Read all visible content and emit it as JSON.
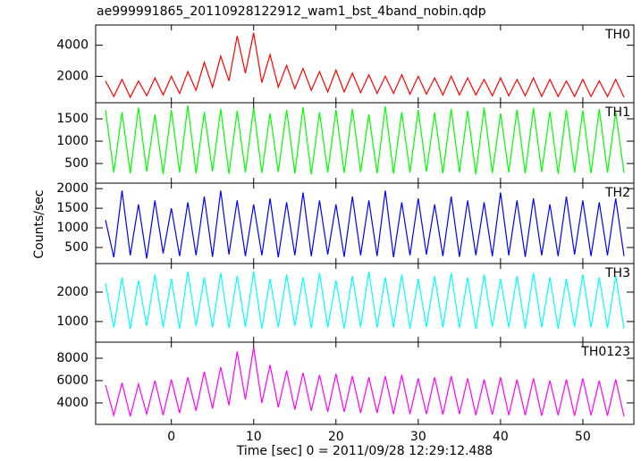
{
  "title": "ae999991865_20110928122912_wam1_bst_4band_nobin.qdp",
  "y_label": "Counts/sec",
  "x_label": "Time [sec] 0 = 2011/09/28 12:29:12.488",
  "chart_data": [
    {
      "type": "line",
      "name": "TH0",
      "color": "#ff0000",
      "x": [
        -8,
        -7,
        -6,
        -5,
        -4,
        -3,
        -2,
        -1,
        0,
        1,
        2,
        3,
        4,
        5,
        6,
        7,
        8,
        9,
        10,
        11,
        12,
        13,
        14,
        15,
        16,
        17,
        18,
        19,
        20,
        21,
        22,
        23,
        24,
        25,
        26,
        27,
        28,
        29,
        30,
        31,
        32,
        33,
        34,
        35,
        36,
        37,
        38,
        39,
        40,
        41,
        42,
        43,
        44,
        45,
        46,
        47,
        48,
        49,
        50,
        51,
        52,
        53,
        54,
        55
      ],
      "values": [
        1700,
        700,
        1800,
        650,
        1700,
        750,
        1900,
        800,
        2000,
        900,
        2300,
        1100,
        2900,
        1300,
        3300,
        1700,
        4600,
        2200,
        4800,
        1600,
        3400,
        1300,
        2700,
        1200,
        2500,
        1100,
        2300,
        1000,
        2400,
        1000,
        2200,
        950,
        2100,
        900,
        2000,
        900,
        2100,
        850,
        2000,
        850,
        1900,
        800,
        2000,
        800,
        1900,
        800,
        1800,
        750,
        1900,
        750,
        1800,
        750,
        1900,
        700,
        1800,
        700,
        1700,
        700,
        1800,
        700,
        1700,
        700,
        1800,
        650
      ],
      "xlim": [
        -9.2,
        56.2
      ],
      "ylim": [
        300,
        5300
      ],
      "yticks": [
        2000,
        4000
      ],
      "xticks": [
        0,
        10,
        20,
        30,
        40,
        50
      ]
    },
    {
      "type": "line",
      "name": "TH1",
      "color": "#00ff00",
      "x": [
        -8,
        -7,
        -6,
        -5,
        -4,
        -3,
        -2,
        -1,
        0,
        1,
        2,
        3,
        4,
        5,
        6,
        7,
        8,
        9,
        10,
        11,
        12,
        13,
        14,
        15,
        16,
        17,
        18,
        19,
        20,
        21,
        22,
        23,
        24,
        25,
        26,
        27,
        28,
        29,
        30,
        31,
        32,
        33,
        34,
        35,
        36,
        37,
        38,
        39,
        40,
        41,
        42,
        43,
        44,
        45,
        46,
        47,
        48,
        49,
        50,
        51,
        52,
        53,
        54,
        55
      ],
      "values": [
        1700,
        300,
        1650,
        280,
        1750,
        320,
        1600,
        260,
        1700,
        300,
        1800,
        280,
        1650,
        320,
        1720,
        270,
        1680,
        300,
        1750,
        290,
        1620,
        310,
        1700,
        280,
        1760,
        260,
        1650,
        300,
        1700,
        290,
        1720,
        310,
        1600,
        280,
        1780,
        270,
        1650,
        300,
        1700,
        320,
        1640,
        280,
        1720,
        300,
        1680,
        260,
        1750,
        290,
        1620,
        300,
        1700,
        280,
        1740,
        310,
        1660,
        270,
        1700,
        300,
        1690,
        280,
        1720,
        300,
        1650,
        290
      ],
      "xlim": [
        -9.2,
        56.2
      ],
      "ylim": [
        60,
        1860
      ],
      "yticks": [
        500,
        1000,
        1500
      ],
      "xticks": [
        0,
        10,
        20,
        30,
        40,
        50
      ]
    },
    {
      "type": "line",
      "name": "TH2",
      "color": "#0000ff",
      "x": [
        -8,
        -7,
        -6,
        -5,
        -4,
        -3,
        -2,
        -1,
        0,
        1,
        2,
        3,
        4,
        5,
        6,
        7,
        8,
        9,
        10,
        11,
        12,
        13,
        14,
        15,
        16,
        17,
        18,
        19,
        20,
        21,
        22,
        23,
        24,
        25,
        26,
        27,
        28,
        29,
        30,
        31,
        32,
        33,
        34,
        35,
        36,
        37,
        38,
        39,
        40,
        41,
        42,
        43,
        44,
        45,
        46,
        47,
        48,
        49,
        50,
        51,
        52,
        53,
        54,
        55
      ],
      "values": [
        1200,
        250,
        1950,
        300,
        1600,
        220,
        1700,
        350,
        1500,
        280,
        1650,
        300,
        1800,
        260,
        1950,
        320,
        1700,
        280,
        1600,
        300,
        1750,
        250,
        1650,
        300,
        1900,
        280,
        1700,
        320,
        1600,
        260,
        1800,
        300,
        1700,
        280,
        1950,
        250,
        1650,
        300,
        1750,
        320,
        1600,
        280,
        1800,
        260,
        1700,
        300,
        1650,
        280,
        1900,
        300,
        1700,
        260,
        1750,
        300,
        1600,
        280,
        1800,
        320,
        1700,
        280,
        1650,
        300,
        1750,
        280
      ],
      "xlim": [
        -9.2,
        56.2
      ],
      "ylim": [
        90,
        2140
      ],
      "yticks": [
        500,
        1000,
        1500,
        2000
      ],
      "xticks": [
        0,
        10,
        20,
        30,
        40,
        50
      ]
    },
    {
      "type": "line",
      "name": "TH3",
      "color": "#00ffff",
      "x": [
        -8,
        -7,
        -6,
        -5,
        -4,
        -3,
        -2,
        -1,
        0,
        1,
        2,
        3,
        4,
        5,
        6,
        7,
        8,
        9,
        10,
        11,
        12,
        13,
        14,
        15,
        16,
        17,
        18,
        19,
        20,
        21,
        22,
        23,
        24,
        25,
        26,
        27,
        28,
        29,
        30,
        31,
        32,
        33,
        34,
        35,
        36,
        37,
        38,
        39,
        40,
        41,
        42,
        43,
        44,
        45,
        46,
        47,
        48,
        49,
        50,
        51,
        52,
        53,
        54,
        55
      ],
      "values": [
        2300,
        800,
        2500,
        750,
        2400,
        850,
        2600,
        800,
        2450,
        750,
        2700,
        850,
        2500,
        800,
        2650,
        780,
        2550,
        820,
        2700,
        760,
        2450,
        800,
        2600,
        850,
        2500,
        780,
        2650,
        800,
        2400,
        760,
        2550,
        820,
        2700,
        790,
        2500,
        800,
        2600,
        760,
        2450,
        820,
        2550,
        800,
        2650,
        780,
        2500,
        750,
        2600,
        820,
        2450,
        800,
        2550,
        770,
        2650,
        800,
        2500,
        760,
        2450,
        820,
        2600,
        800,
        2500,
        780,
        2550,
        760
      ],
      "xlim": [
        -9.2,
        56.2
      ],
      "ylim": [
        300,
        2970
      ],
      "yticks": [
        1000,
        2000
      ],
      "xticks": [
        0,
        10,
        20,
        30,
        40,
        50
      ]
    },
    {
      "type": "line",
      "name": "TH0123",
      "color": "#ff00ff",
      "x": [
        -8,
        -7,
        -6,
        -5,
        -4,
        -3,
        -2,
        -1,
        0,
        1,
        2,
        3,
        4,
        5,
        6,
        7,
        8,
        9,
        10,
        11,
        12,
        13,
        14,
        15,
        16,
        17,
        18,
        19,
        20,
        21,
        22,
        23,
        24,
        25,
        26,
        27,
        28,
        29,
        30,
        31,
        32,
        33,
        34,
        35,
        36,
        37,
        38,
        39,
        40,
        41,
        42,
        43,
        44,
        45,
        46,
        47,
        48,
        49,
        50,
        51,
        52,
        53,
        54,
        55
      ],
      "values": [
        5600,
        2900,
        5800,
        2800,
        5700,
        3000,
        6000,
        2900,
        6100,
        3100,
        6300,
        3300,
        6800,
        3500,
        7200,
        3800,
        8600,
        4300,
        9000,
        4000,
        7400,
        3600,
        6900,
        3400,
        6700,
        3300,
        6500,
        3200,
        6600,
        3200,
        6400,
        3100,
        6300,
        3100,
        6400,
        3000,
        6500,
        3000,
        6200,
        3000,
        6300,
        2950,
        6400,
        3000,
        6200,
        2900,
        6100,
        2950,
        6300,
        2900,
        6100,
        2900,
        6200,
        2850,
        6000,
        2900,
        6100,
        2850,
        6200,
        2900,
        6000,
        2850,
        6100,
        2800
      ],
      "xlim": [
        -9.2,
        56.2
      ],
      "ylim": [
        2080,
        9440
      ],
      "yticks": [
        4000,
        6000,
        8000
      ],
      "xticks": [
        0,
        10,
        20,
        30,
        40,
        50
      ]
    }
  ]
}
